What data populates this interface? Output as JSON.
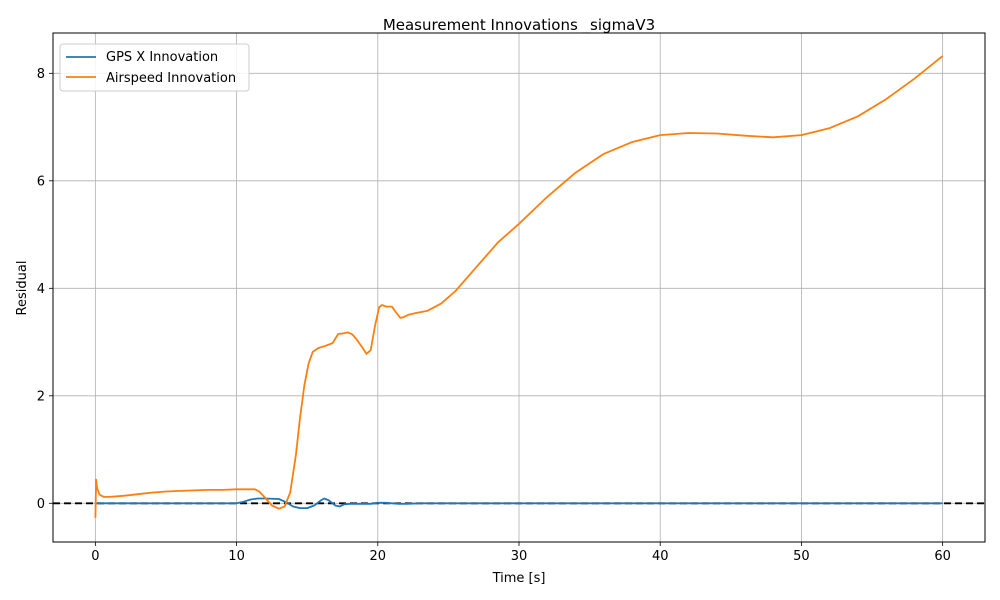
{
  "chart_data": {
    "type": "line",
    "title": "Measurement Innovations _sigmaV3",
    "xlabel": "Time [s]",
    "ylabel": "Residual",
    "xlim": [
      -3,
      63
    ],
    "ylim": [
      -0.72,
      8.75
    ],
    "xticks": [
      0,
      10,
      20,
      30,
      40,
      50,
      60
    ],
    "yticks": [
      0,
      2,
      4,
      6,
      8
    ],
    "grid": true,
    "legend_position": "top-left",
    "reference_line": {
      "y": 0,
      "style": "dashed",
      "color": "#000000"
    },
    "series": [
      {
        "name": "GPS X Innovation",
        "color": "#1f77b4",
        "x": [
          0,
          5,
          10,
          10.5,
          11,
          11.5,
          12,
          13,
          13.5,
          14,
          14.5,
          15,
          15.5,
          16,
          16.2,
          16.5,
          17,
          17.3,
          17.6,
          18,
          19,
          19.5,
          20,
          20.5,
          21,
          21.5,
          22,
          23,
          25,
          30,
          40,
          50,
          60
        ],
        "y": [
          0,
          0,
          0,
          0.03,
          0.07,
          0.09,
          0.09,
          0.08,
          0.02,
          -0.06,
          -0.09,
          -0.09,
          -0.04,
          0.06,
          0.09,
          0.06,
          -0.04,
          -0.06,
          -0.02,
          -0.01,
          -0.01,
          -0.01,
          0.01,
          0.01,
          0,
          -0.01,
          -0.01,
          0,
          0,
          0,
          0,
          0,
          0
        ]
      },
      {
        "name": "Airspeed Innovation",
        "color": "#ff7f0e",
        "x": [
          0,
          0.05,
          0.12,
          0.3,
          0.6,
          1,
          2,
          3,
          4,
          5,
          6,
          7,
          8,
          9,
          10,
          11,
          11.3,
          11.6,
          12,
          12.5,
          13,
          13.4,
          13.8,
          14.2,
          14.5,
          14.8,
          15.1,
          15.4,
          15.8,
          16.3,
          16.8,
          17.2,
          17.5,
          17.9,
          18.2,
          18.5,
          18.9,
          19.2,
          19.5,
          19.8,
          20.1,
          20.3,
          20.6,
          21,
          21.3,
          21.6,
          21.8,
          22.2,
          22.7,
          23.5,
          24.5,
          25.5,
          27,
          28.5,
          30,
          32,
          34,
          36,
          38,
          40,
          42,
          44,
          46,
          48,
          50,
          52,
          54,
          56,
          58,
          60
        ],
        "y": [
          -0.27,
          0.44,
          0.28,
          0.16,
          0.12,
          0.12,
          0.14,
          0.17,
          0.2,
          0.22,
          0.23,
          0.24,
          0.25,
          0.25,
          0.26,
          0.26,
          0.26,
          0.22,
          0.11,
          -0.04,
          -0.1,
          -0.06,
          0.2,
          0.9,
          1.6,
          2.2,
          2.6,
          2.82,
          2.89,
          2.93,
          2.98,
          3.15,
          3.16,
          3.18,
          3.14,
          3.05,
          2.9,
          2.78,
          2.85,
          3.3,
          3.65,
          3.69,
          3.66,
          3.66,
          3.55,
          3.45,
          3.46,
          3.51,
          3.54,
          3.58,
          3.72,
          3.95,
          4.4,
          4.85,
          5.2,
          5.7,
          6.15,
          6.5,
          6.72,
          6.85,
          6.89,
          6.88,
          6.84,
          6.81,
          6.85,
          6.98,
          7.2,
          7.52,
          7.9,
          8.32
        ]
      }
    ]
  }
}
